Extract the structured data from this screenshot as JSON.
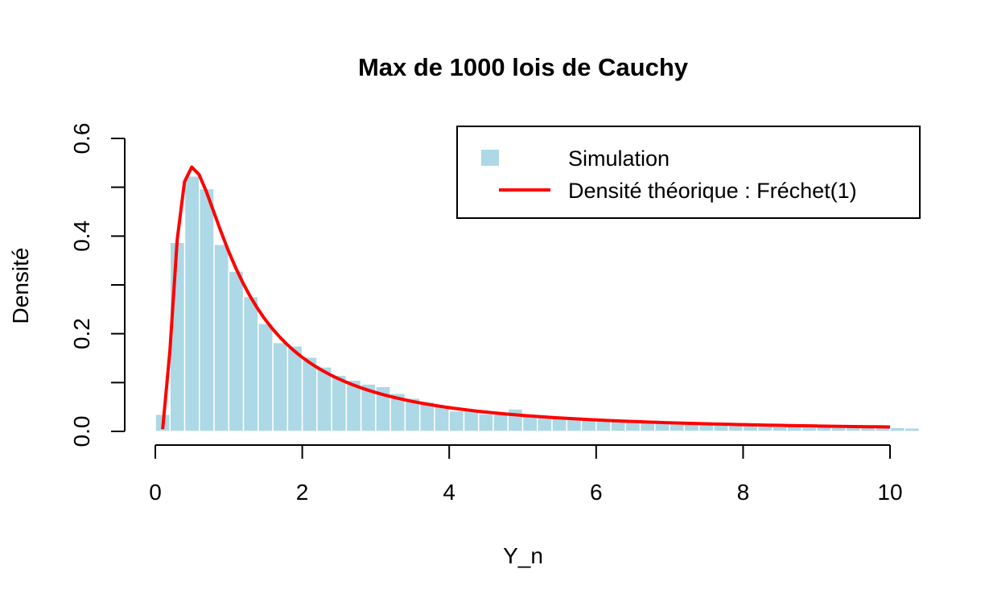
{
  "chart_data": {
    "type": "bar",
    "title": "Max de 1000 lois de Cauchy",
    "xlabel": "Y_n",
    "ylabel": "Densité",
    "xlim": [
      0,
      10.4
    ],
    "ylim": [
      0,
      0.6
    ],
    "x_ticks": [
      "0",
      "2",
      "4",
      "6",
      "8",
      "10"
    ],
    "y_ticks": [
      "0.0",
      "0.2",
      "0.4",
      "0.6"
    ],
    "bin_width": 0.2,
    "bin_start": 0,
    "histogram_density": [
      0.035,
      0.387,
      0.523,
      0.497,
      0.383,
      0.328,
      0.276,
      0.221,
      0.182,
      0.175,
      0.152,
      0.132,
      0.115,
      0.105,
      0.097,
      0.092,
      0.078,
      0.068,
      0.06,
      0.052,
      0.042,
      0.042,
      0.036,
      0.04,
      0.046,
      0.035,
      0.031,
      0.028,
      0.026,
      0.026,
      0.024,
      0.022,
      0.02,
      0.018,
      0.017,
      0.016,
      0.015,
      0.014,
      0.013,
      0.012,
      0.012,
      0.011,
      0.01,
      0.01,
      0.009,
      0.009,
      0.008,
      0.008,
      0.008,
      0.008,
      0.008,
      0.007
    ],
    "series": [
      {
        "name": "Simulation",
        "kind": "histogram",
        "color": "#add8e6"
      },
      {
        "name": "Densité théorique : Fréchet(1)",
        "kind": "line",
        "color": "#ff0000",
        "x_range": [
          0.1,
          10
        ]
      }
    ],
    "legend_position": "top-right",
    "grid": false
  }
}
